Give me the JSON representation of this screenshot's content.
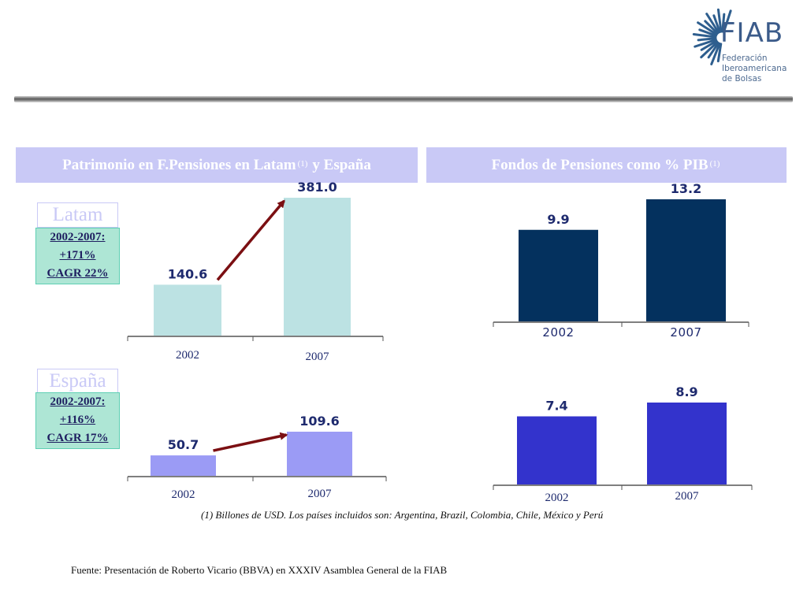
{
  "logo": {
    "word": "FIAB",
    "subtitle_lines": [
      "Federación",
      "Iberoamericana",
      "de Bolsas"
    ]
  },
  "headers": {
    "left": {
      "text": "Patrimonio en F.Pensiones en Latam",
      "sup": "(1)",
      "suffix": "y España"
    },
    "right": {
      "text": "Fondos de Pensiones como % PIB",
      "sup": "(1)"
    }
  },
  "regions": {
    "latam": {
      "label": "Latam",
      "growth": [
        "2002-2007:",
        "+171%",
        "CAGR 22%"
      ]
    },
    "espana": {
      "label": "España",
      "growth": [
        "2002-2007:",
        "+116%",
        "CAGR 17%"
      ]
    }
  },
  "colors": {
    "latam_assets": "#bce2e3",
    "espana_assets": "#9b9bf5",
    "latam_pib": "#04315e",
    "espana_pib": "#3333cc",
    "arrow": "#7b0f12"
  },
  "chart_data": [
    {
      "type": "bar",
      "id": "latam_assets",
      "categories": [
        "2002",
        "2007"
      ],
      "values": [
        140.6,
        381.0
      ],
      "value_labels": [
        "140.6",
        "381.0"
      ],
      "ylim": [
        0,
        400
      ]
    },
    {
      "type": "bar",
      "id": "espana_assets",
      "categories": [
        "2002",
        "2007"
      ],
      "values": [
        50.7,
        109.6
      ],
      "value_labels": [
        "50.7",
        "109.6"
      ],
      "ylim": [
        0,
        120
      ]
    },
    {
      "type": "bar",
      "id": "latam_pib",
      "categories": [
        "2002",
        "2007"
      ],
      "values": [
        9.9,
        13.2
      ],
      "value_labels": [
        "9.9",
        "13.2"
      ],
      "ylim": [
        0,
        15
      ]
    },
    {
      "type": "bar",
      "id": "espana_pib",
      "categories": [
        "2002",
        "2007"
      ],
      "values": [
        7.4,
        8.9
      ],
      "value_labels": [
        "7.4",
        "8.9"
      ],
      "ylim": [
        0,
        10
      ]
    }
  ],
  "footnote": "(1) Billones de USD. Los países incluidos son: Argentina, Brazil, Colombia, Chile, México y Perú",
  "source": "Fuente: Presentación de Roberto Vicario (BBVA) en XXXIV Asamblea General de la FIAB"
}
